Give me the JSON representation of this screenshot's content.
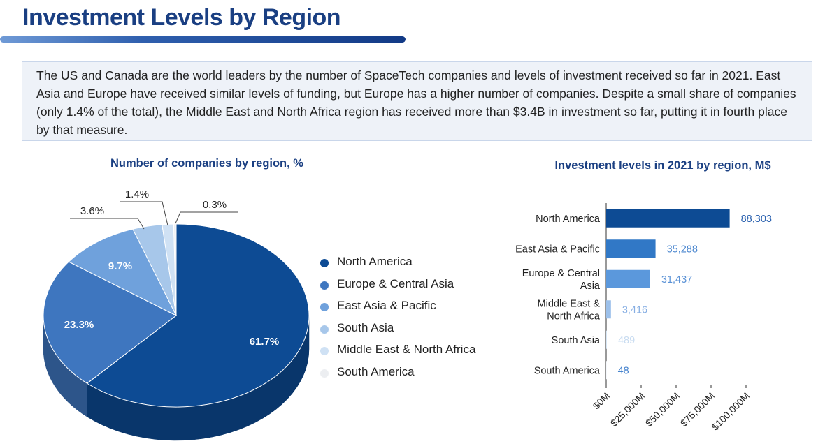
{
  "page": {
    "title": "Investment Levels by Region",
    "intro": "The US and Canada are the world leaders by the number of SpaceTech companies and levels of investment received so far in 2021. East Asia and Europe have received similar levels of funding, but Europe has a higher number of companies. Despite a small share of companies (only 1.4% of the total), the Middle East and North Africa region has received more than $3.4B in investment so far, putting it in fourth place by that measure.",
    "accent_color": "#1a3f82"
  },
  "chart_data": [
    {
      "type": "pie",
      "title": "Number of companies by region, %",
      "categories": [
        "North America",
        "Europe & Central Asia",
        "East Asia & Pacific",
        "South Asia",
        "Middle East & North Africa",
        "South America"
      ],
      "values": [
        61.7,
        23.3,
        9.7,
        3.6,
        1.4,
        0.3
      ],
      "labels": [
        "61.7%",
        "23.3%",
        "9.7%",
        "3.6%",
        "1.4%",
        "0.3%"
      ],
      "colors": [
        "#0d4b94",
        "#3e76bf",
        "#6fa1dc",
        "#a7c7ea",
        "#cfe1f4",
        "#eceef1"
      ],
      "legend_position": "right"
    },
    {
      "type": "bar",
      "orientation": "horizontal",
      "title": "Investment levels in 2021 by region, M$",
      "categories": [
        "North America",
        "East Asia & Pacific",
        "Europe & Central Asia",
        "Middle East & North Africa",
        "South Asia",
        "South America"
      ],
      "category_labels": [
        [
          "North America"
        ],
        [
          "East Asia & Pacific"
        ],
        [
          "Europe & Central",
          "Asia"
        ],
        [
          "Middle East &",
          "North Africa"
        ],
        [
          "South Asia"
        ],
        [
          "South America"
        ]
      ],
      "values": [
        88303,
        35288,
        31437,
        3416,
        489,
        48
      ],
      "value_labels": [
        "88,303",
        "35,288",
        "31,437",
        "3,416",
        "489",
        "48"
      ],
      "colors": [
        "#0d4b94",
        "#3178c6",
        "#5b98dc",
        "#9cc0ea",
        "#d6e5f5",
        "#eef3f9"
      ],
      "label_colors": [
        "#2d63b0",
        "#4a86cf",
        "#5b92d6",
        "#86aee3",
        "#c9dcf1",
        "#4a86cf"
      ],
      "xlim": [
        0,
        100000
      ],
      "x_ticks": [
        0,
        25000,
        50000,
        75000,
        100000
      ],
      "x_tick_labels": [
        "$0M",
        "$25,000M",
        "$50,000M",
        "$75,000M",
        "$100,000M"
      ],
      "grid": false
    }
  ]
}
